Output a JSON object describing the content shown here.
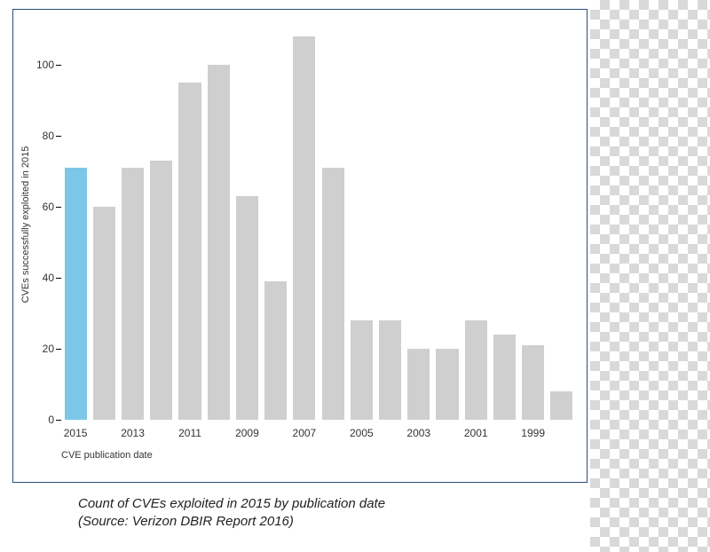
{
  "chart": {
    "type": "bar",
    "frame_border_color": "#2a4d7a",
    "background_color": "#ffffff",
    "y_axis": {
      "title": "CVEs successfully exploited in 2015",
      "min": 0,
      "max": 110,
      "ticks": [
        0,
        20,
        40,
        60,
        80,
        100
      ],
      "tick_labels": [
        "0",
        "20",
        "40",
        "60",
        "80",
        "100"
      ],
      "label_fontsize": 12,
      "title_fontsize": 11
    },
    "x_axis": {
      "title": "CVE publication date",
      "tick_labels": [
        "2015",
        "2013",
        "2011",
        "2009",
        "2007",
        "2005",
        "2003",
        "2001",
        "1999"
      ],
      "tick_positions": [
        0,
        2,
        4,
        6,
        8,
        10,
        12,
        14,
        16
      ],
      "label_fontsize": 12,
      "title_fontsize": 11
    },
    "bars": {
      "count": 18,
      "values": [
        71,
        60,
        71,
        73,
        95,
        100,
        63,
        39,
        108,
        71,
        28,
        28,
        20,
        20,
        28,
        24,
        21,
        8
      ],
      "colors": [
        "#7cc7e8",
        "#cfcfcf",
        "#cfcfcf",
        "#cfcfcf",
        "#cfcfcf",
        "#cfcfcf",
        "#cfcfcf",
        "#cfcfcf",
        "#cfcfcf",
        "#cfcfcf",
        "#cfcfcf",
        "#cfcfcf",
        "#cfcfcf",
        "#cfcfcf",
        "#cfcfcf",
        "#cfcfcf",
        "#cfcfcf",
        "#cfcfcf"
      ],
      "bar_width_ratio": 0.78
    }
  },
  "caption": {
    "line1": "Count of CVEs exploited in 2015 by publication date",
    "line2": "(Source: Verizon DBIR Report 2016)"
  }
}
